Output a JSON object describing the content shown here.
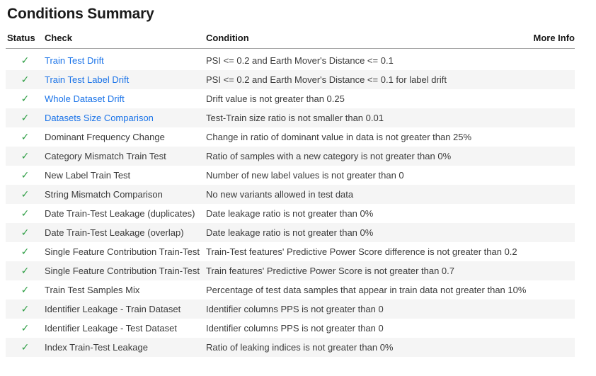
{
  "page": {
    "title": "Conditions Summary"
  },
  "colors": {
    "link": "#1a73e8",
    "status_pass": "#2e9e44",
    "row_stripe": "#f5f5f5"
  },
  "table": {
    "columns": [
      "Status",
      "Check",
      "Condition",
      "More Info"
    ],
    "status_pass_glyph": "✓",
    "rows": [
      {
        "status": "pass",
        "check": "Train Test Drift",
        "link": true,
        "condition": "PSI <= 0.2 and Earth Mover's Distance <= 0.1"
      },
      {
        "status": "pass",
        "check": "Train Test Label Drift",
        "link": true,
        "condition": "PSI <= 0.2 and Earth Mover's Distance <= 0.1 for label drift"
      },
      {
        "status": "pass",
        "check": "Whole Dataset Drift",
        "link": true,
        "condition": "Drift value is not greater than 0.25"
      },
      {
        "status": "pass",
        "check": "Datasets Size Comparison",
        "link": true,
        "condition": "Test-Train size ratio is not smaller than 0.01"
      },
      {
        "status": "pass",
        "check": "Dominant Frequency Change",
        "link": false,
        "condition": "Change in ratio of dominant value in data is not greater than 25%"
      },
      {
        "status": "pass",
        "check": "Category Mismatch Train Test",
        "link": false,
        "condition": "Ratio of samples with a new category is not greater than 0%"
      },
      {
        "status": "pass",
        "check": "New Label Train Test",
        "link": false,
        "condition": "Number of new label values is not greater than 0"
      },
      {
        "status": "pass",
        "check": "String Mismatch Comparison",
        "link": false,
        "condition": "No new variants allowed in test data"
      },
      {
        "status": "pass",
        "check": "Date Train-Test Leakage (duplicates)",
        "link": false,
        "condition": "Date leakage ratio is not greater than 0%"
      },
      {
        "status": "pass",
        "check": "Date Train-Test Leakage (overlap)",
        "link": false,
        "condition": "Date leakage ratio is not greater than 0%"
      },
      {
        "status": "pass",
        "check": "Single Feature Contribution Train-Test",
        "link": false,
        "condition": "Train-Test features' Predictive Power Score difference is not greater than 0.2"
      },
      {
        "status": "pass",
        "check": "Single Feature Contribution Train-Test",
        "link": false,
        "condition": "Train features' Predictive Power Score is not greater than 0.7"
      },
      {
        "status": "pass",
        "check": "Train Test Samples Mix",
        "link": false,
        "condition": "Percentage of test data samples that appear in train data not greater than 10%"
      },
      {
        "status": "pass",
        "check": "Identifier Leakage - Train Dataset",
        "link": false,
        "condition": "Identifier columns PPS is not greater than 0"
      },
      {
        "status": "pass",
        "check": "Identifier Leakage - Test Dataset",
        "link": false,
        "condition": "Identifier columns PPS is not greater than 0"
      },
      {
        "status": "pass",
        "check": "Index Train-Test Leakage",
        "link": false,
        "condition": "Ratio of leaking indices is not greater than 0%"
      }
    ]
  }
}
